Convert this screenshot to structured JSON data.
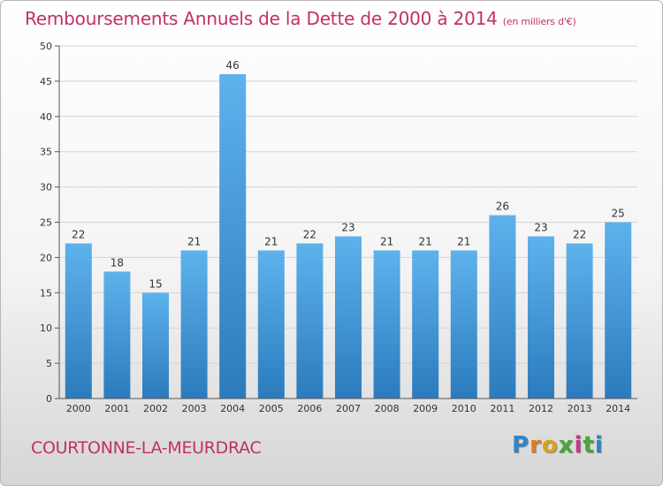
{
  "header": {
    "title": "Remboursements Annuels de la Dette de 2000 à 2014",
    "subtitle": "(en milliers d'€)"
  },
  "footer": {
    "city": "COURTONNE-LA-MEURDRAC",
    "logo_letters": [
      "P",
      "r",
      "o",
      "x",
      "i",
      "t",
      "i"
    ],
    "logo_colors": [
      "#2f86c8",
      "#e07b1a",
      "#d8a21c",
      "#4aa63a",
      "#c53a8a",
      "#4aa63a",
      "#2f86c8"
    ]
  },
  "chart_data": {
    "type": "bar",
    "categories": [
      "2000",
      "2001",
      "2002",
      "2003",
      "2004",
      "2005",
      "2006",
      "2007",
      "2008",
      "2009",
      "2010",
      "2011",
      "2012",
      "2013",
      "2014"
    ],
    "values": [
      22,
      18,
      15,
      21,
      46,
      21,
      22,
      23,
      21,
      21,
      21,
      26,
      23,
      22,
      25
    ],
    "title": "Remboursements Annuels de la Dette de 2000 à 2014",
    "xlabel": "",
    "ylabel": "",
    "ylim": [
      0,
      50
    ],
    "yticks": [
      0,
      5,
      10,
      15,
      20,
      25,
      30,
      35,
      40,
      45,
      50
    ],
    "grid": true,
    "bar_color_top": "#5eb2ec",
    "bar_color_bottom": "#2b7bbd",
    "data_labels": true
  }
}
